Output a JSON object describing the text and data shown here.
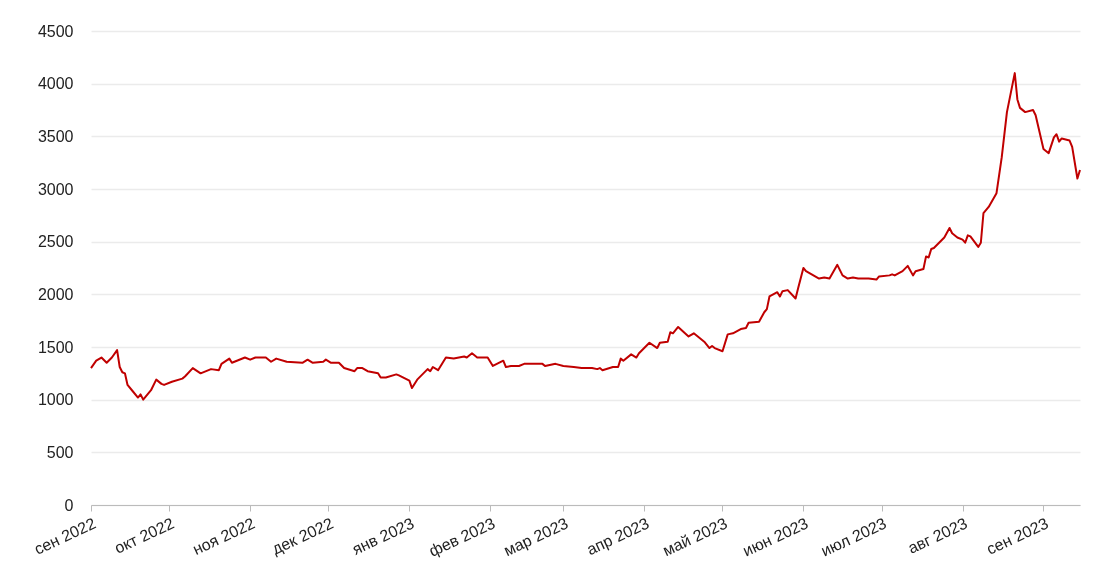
{
  "chart_data": {
    "type": "line",
    "x": [
      "2022-09-01",
      "2022-09-03",
      "2022-09-05",
      "2022-09-07",
      "2022-09-09",
      "2022-09-11",
      "2022-09-12",
      "2022-09-13",
      "2022-09-14",
      "2022-09-15",
      "2022-09-17",
      "2022-09-19",
      "2022-09-20",
      "2022-09-21",
      "2022-09-24",
      "2022-09-26",
      "2022-09-28",
      "2022-09-29",
      "2022-10-02",
      "2022-10-06",
      "2022-10-07",
      "2022-10-10",
      "2022-10-13",
      "2022-10-17",
      "2022-10-20",
      "2022-10-21",
      "2022-10-24",
      "2022-10-25",
      "2022-10-30",
      "2022-11-01",
      "2022-11-03",
      "2022-11-07",
      "2022-11-09",
      "2022-11-11",
      "2022-11-15",
      "2022-11-21",
      "2022-11-23",
      "2022-11-25",
      "2022-11-29",
      "2022-11-30",
      "2022-12-02",
      "2022-12-05",
      "2022-12-07",
      "2022-12-11",
      "2022-12-12",
      "2022-12-14",
      "2022-12-16",
      "2022-12-20",
      "2022-12-21",
      "2022-12-23",
      "2022-12-27",
      "2022-12-28",
      "2023-01-01",
      "2023-01-02",
      "2023-01-04",
      "2023-01-08",
      "2023-01-09",
      "2023-01-10",
      "2023-01-12",
      "2023-01-15",
      "2023-01-18",
      "2023-01-22",
      "2023-01-23",
      "2023-01-25",
      "2023-01-27",
      "2023-01-31",
      "2023-02-02",
      "2023-02-06",
      "2023-02-07",
      "2023-02-09",
      "2023-02-12",
      "2023-02-14",
      "2023-02-21",
      "2023-02-22",
      "2023-02-26",
      "2023-03-01",
      "2023-03-05",
      "2023-03-08",
      "2023-03-12",
      "2023-03-14",
      "2023-03-15",
      "2023-03-16",
      "2023-03-20",
      "2023-03-22",
      "2023-03-23",
      "2023-03-24",
      "2023-03-27",
      "2023-03-29",
      "2023-03-30",
      "2023-04-03",
      "2023-04-06",
      "2023-04-07",
      "2023-04-10",
      "2023-04-11",
      "2023-04-12",
      "2023-04-14",
      "2023-04-18",
      "2023-04-20",
      "2023-04-24",
      "2023-04-26",
      "2023-04-27",
      "2023-04-28",
      "2023-05-01",
      "2023-05-03",
      "2023-05-05",
      "2023-05-08",
      "2023-05-10",
      "2023-05-11",
      "2023-05-15",
      "2023-05-17",
      "2023-05-18",
      "2023-05-19",
      "2023-05-22",
      "2023-05-23",
      "2023-05-24",
      "2023-05-26",
      "2023-05-29",
      "2023-05-30",
      "2023-06-01",
      "2023-06-02",
      "2023-06-07",
      "2023-06-09",
      "2023-06-11",
      "2023-06-14",
      "2023-06-16",
      "2023-06-18",
      "2023-06-20",
      "2023-06-22",
      "2023-06-26",
      "2023-06-29",
      "2023-06-30",
      "2023-07-04",
      "2023-07-05",
      "2023-07-06",
      "2023-07-09",
      "2023-07-11",
      "2023-07-13",
      "2023-07-14",
      "2023-07-17",
      "2023-07-18",
      "2023-07-19",
      "2023-07-20",
      "2023-07-21",
      "2023-07-23",
      "2023-07-25",
      "2023-07-27",
      "2023-07-28",
      "2023-07-30",
      "2023-08-01",
      "2023-08-02",
      "2023-08-03",
      "2023-08-04",
      "2023-08-07",
      "2023-08-08",
      "2023-08-09",
      "2023-08-11",
      "2023-08-14",
      "2023-08-16",
      "2023-08-18",
      "2023-08-21",
      "2023-08-22",
      "2023-08-23",
      "2023-08-25",
      "2023-08-28",
      "2023-08-29",
      "2023-09-01",
      "2023-09-03",
      "2023-09-05",
      "2023-09-06",
      "2023-09-07",
      "2023-09-08",
      "2023-09-11",
      "2023-09-12",
      "2023-09-14",
      "2023-09-15"
    ],
    "series": [
      {
        "color": "#c00000",
        "values": [
          1300,
          1370,
          1400,
          1350,
          1400,
          1470,
          1310,
          1260,
          1250,
          1140,
          1080,
          1020,
          1050,
          1000,
          1090,
          1190,
          1150,
          1140,
          1170,
          1200,
          1220,
          1300,
          1250,
          1290,
          1280,
          1340,
          1390,
          1350,
          1400,
          1380,
          1400,
          1400,
          1360,
          1390,
          1360,
          1350,
          1380,
          1350,
          1360,
          1380,
          1350,
          1350,
          1300,
          1270,
          1300,
          1300,
          1270,
          1250,
          1210,
          1210,
          1240,
          1230,
          1180,
          1110,
          1190,
          1290,
          1270,
          1310,
          1280,
          1400,
          1390,
          1410,
          1400,
          1440,
          1400,
          1400,
          1320,
          1370,
          1310,
          1320,
          1320,
          1340,
          1340,
          1320,
          1340,
          1320,
          1310,
          1300,
          1300,
          1290,
          1300,
          1280,
          1310,
          1310,
          1390,
          1370,
          1430,
          1400,
          1440,
          1540,
          1490,
          1540,
          1550,
          1640,
          1630,
          1690,
          1600,
          1630,
          1550,
          1490,
          1510,
          1490,
          1460,
          1620,
          1630,
          1670,
          1680,
          1730,
          1740,
          1830,
          1860,
          1980,
          2020,
          1980,
          2030,
          2040,
          1960,
          2060,
          2250,
          2220,
          2150,
          2160,
          2150,
          2280,
          2180,
          2150,
          2160,
          2150,
          2150,
          2140,
          2170,
          2180,
          2190,
          2180,
          2220,
          2270,
          2180,
          2220,
          2240,
          2360,
          2350,
          2430,
          2440,
          2490,
          2540,
          2630,
          2580,
          2540,
          2520,
          2490,
          2560,
          2550,
          2450,
          2490,
          2770,
          2830,
          2960,
          3300,
          3730,
          4100,
          3850,
          3770,
          3730,
          3750,
          3700,
          3380,
          3340,
          3490,
          3520,
          3450,
          3480,
          3460,
          3400,
          3100,
          3180
        ]
      }
    ],
    "xlim": [
      "2022-09-01",
      "2023-09-15"
    ],
    "xticks": [
      {
        "value": "2022-09-01",
        "label": "сен 2022"
      },
      {
        "value": "2022-10-01",
        "label": "окт 2022"
      },
      {
        "value": "2022-11-01",
        "label": "ноя 2022"
      },
      {
        "value": "2022-12-01",
        "label": "дек 2022"
      },
      {
        "value": "2023-01-01",
        "label": "янв 2023"
      },
      {
        "value": "2023-02-01",
        "label": "фев 2023"
      },
      {
        "value": "2023-03-01",
        "label": "мар 2023"
      },
      {
        "value": "2023-04-01",
        "label": "апр 2023"
      },
      {
        "value": "2023-05-01",
        "label": "май 2023"
      },
      {
        "value": "2023-06-01",
        "label": "июн 2023"
      },
      {
        "value": "2023-07-01",
        "label": "июл 2023"
      },
      {
        "value": "2023-08-01",
        "label": "авг 2023"
      },
      {
        "value": "2023-09-01",
        "label": "сен 2023"
      }
    ],
    "ylim": [
      0,
      4500
    ],
    "yticks": [
      0,
      500,
      1000,
      1500,
      2000,
      2500,
      3000,
      3500,
      4000,
      4500
    ],
    "grid": "y"
  }
}
